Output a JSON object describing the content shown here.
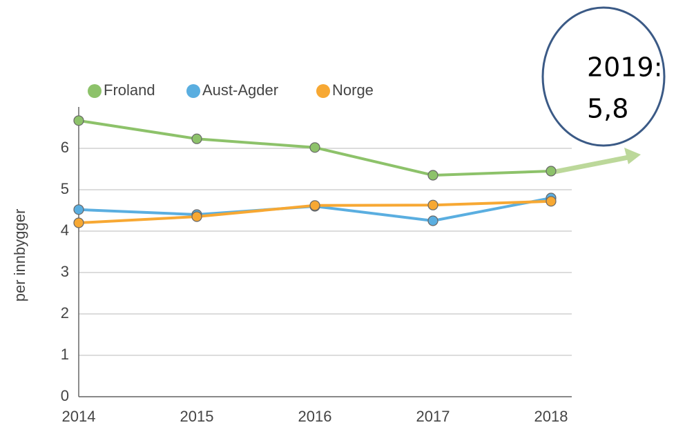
{
  "chart_data": {
    "type": "line",
    "y_label": "per innbygger",
    "categories": [
      "2014",
      "2015",
      "2016",
      "2017",
      "2018"
    ],
    "series": [
      {
        "name": "Froland",
        "color": "#8dc26a",
        "values": [
          6.67,
          6.23,
          6.02,
          5.35,
          5.45
        ]
      },
      {
        "name": "Aust-Agder",
        "color": "#5aaee0",
        "values": [
          4.52,
          4.4,
          4.6,
          4.25,
          4.8
        ]
      },
      {
        "name": "Norge",
        "color": "#f7a833",
        "values": [
          4.2,
          4.35,
          4.62,
          4.63,
          4.72
        ]
      }
    ],
    "ylim": [
      0,
      7
    ],
    "yticks": [
      0,
      1,
      2,
      3,
      4,
      5,
      6
    ],
    "grid": true,
    "annotation": [
      "2019:",
      "5,8"
    ]
  }
}
